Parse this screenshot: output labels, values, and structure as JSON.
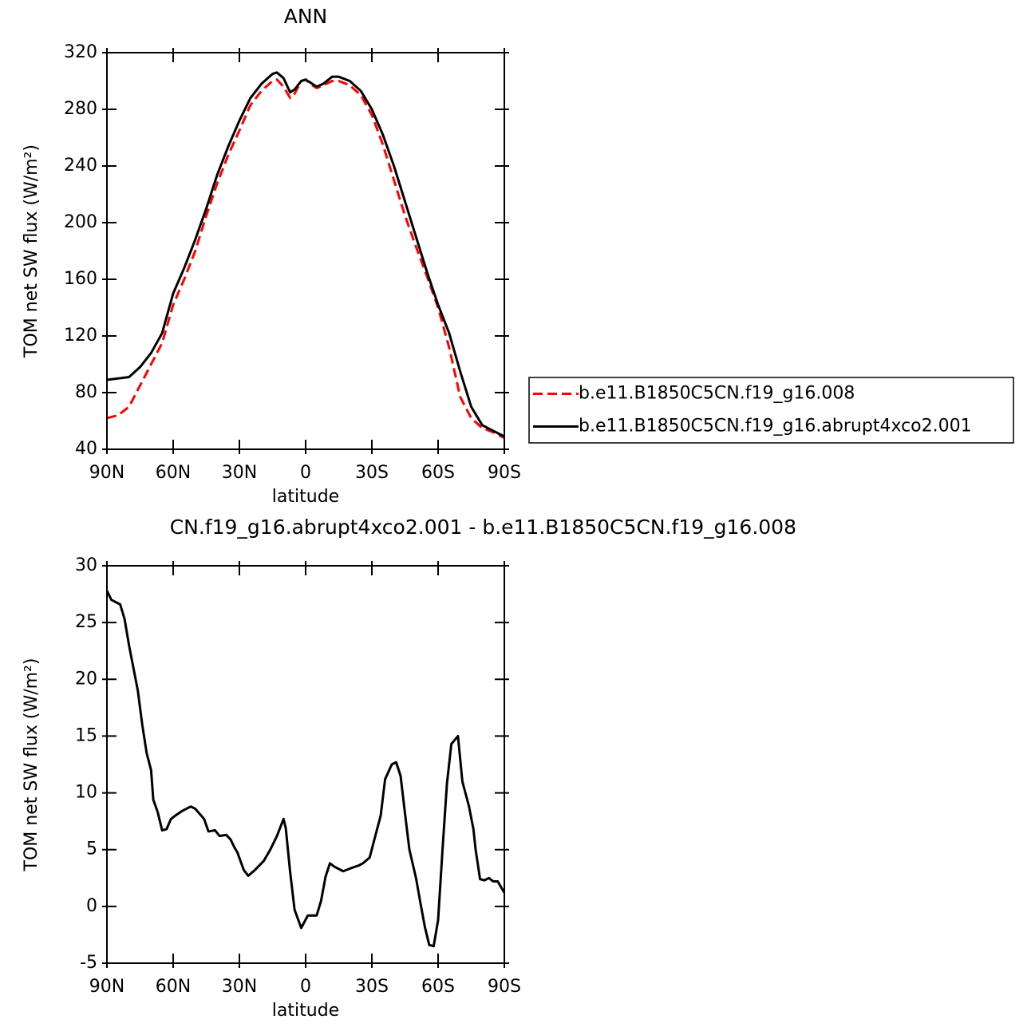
{
  "chart_data": [
    {
      "type": "line",
      "title": "ANN",
      "xlabel": "latitude",
      "ylabel": "TOM net SW flux (W/m²)",
      "x": [
        90,
        85,
        80,
        75,
        70,
        65,
        60,
        55,
        50,
        45,
        40,
        35,
        30,
        25,
        20,
        15,
        13,
        10,
        7,
        5,
        2,
        0,
        -3,
        -5,
        -8,
        -12,
        -15,
        -20,
        -25,
        -30,
        -35,
        -40,
        -45,
        -50,
        -55,
        -60,
        -65,
        -70,
        -75,
        -80,
        -85,
        -90
      ],
      "series": [
        {
          "name": "b.e11.B1850C5CN.f19_g16.008",
          "color": "#ff0000",
          "dash": true,
          "values": [
            62,
            64,
            70,
            85,
            100,
            115,
            142,
            160,
            180,
            205,
            228,
            248,
            265,
            283,
            293,
            300,
            301,
            296,
            288,
            291,
            300,
            301,
            297,
            295,
            297,
            300,
            300,
            297,
            290,
            276,
            255,
            230,
            205,
            183,
            162,
            140,
            112,
            77,
            62,
            55,
            52,
            48
          ]
        },
        {
          "name": "b.e11.B1850C5CN.f19_g16.abrupt4xco2.001",
          "color": "#000000",
          "dash": false,
          "values": [
            89,
            90,
            91,
            98,
            108,
            122,
            150,
            168,
            188,
            210,
            234,
            254,
            272,
            288,
            298,
            305,
            306,
            302,
            292,
            294,
            300,
            301,
            298,
            296,
            298,
            303,
            303,
            300,
            293,
            280,
            262,
            240,
            215,
            190,
            165,
            142,
            122,
            95,
            70,
            57,
            53,
            49
          ]
        }
      ],
      "xlim": [
        90,
        -90
      ],
      "xticks": [
        {
          "value": 90,
          "label": "90N"
        },
        {
          "value": 60,
          "label": "60N"
        },
        {
          "value": 30,
          "label": "30N"
        },
        0,
        {
          "value": -30,
          "label": "30S"
        },
        {
          "value": -60,
          "label": "60S"
        },
        {
          "value": -90,
          "label": "90S"
        }
      ],
      "ylim": [
        40,
        320
      ],
      "yticks": [
        40,
        80,
        120,
        160,
        200,
        240,
        280,
        320
      ],
      "legend": "right"
    },
    {
      "type": "line",
      "title": "CN.f19_g16.abrupt4xco2.001 - b.e11.B1850C5CN.f19_g16.008",
      "xlabel": "latitude",
      "ylabel": "TOM net SW flux (W/m²)",
      "x": [
        90,
        88,
        84,
        82,
        80,
        78,
        76,
        74,
        72,
        70,
        69,
        67,
        65,
        63,
        61,
        59,
        56,
        52,
        50,
        46,
        44,
        41,
        39,
        36,
        34,
        32,
        31,
        28,
        26,
        23,
        19,
        16,
        13,
        10,
        9,
        7,
        5,
        2,
        -1,
        -5,
        -7,
        -9,
        -11,
        -13,
        -17,
        -21,
        -24,
        -26,
        -29,
        -31,
        -34,
        -36,
        -39,
        -41,
        -43,
        -45,
        -47,
        -50,
        -52,
        -54,
        -56,
        -58,
        -60,
        -62,
        -64,
        -66,
        -69,
        -71,
        -74,
        -76,
        -77,
        -79,
        -81,
        -83,
        -85,
        -87,
        -90
      ],
      "series": [
        {
          "color": "#000000",
          "dash": false,
          "values": [
            27.8,
            27,
            26.6,
            25.3,
            23,
            21,
            19,
            16,
            13.5,
            12,
            9.4,
            8.3,
            6.7,
            6.8,
            7.7,
            8,
            8.4,
            8.8,
            8.6,
            7.7,
            6.6,
            6.7,
            6.2,
            6.3,
            5.9,
            5.1,
            4.8,
            3.2,
            2.7,
            3.2,
            4,
            5,
            6.2,
            7.7,
            6.9,
            3,
            -0.3,
            -1.9,
            -0.8,
            -0.8,
            0.5,
            2.6,
            3.8,
            3.5,
            3.1,
            3.4,
            3.6,
            3.8,
            4.3,
            5.8,
            8,
            11.2,
            12.5,
            12.7,
            11.5,
            8.2,
            5,
            2.5,
            0.3,
            -1.8,
            -3.4,
            -3.5,
            -1.2,
            5,
            10.8,
            14.3,
            15,
            11,
            8.8,
            6.8,
            5,
            2.4,
            2.3,
            2.5,
            2.2,
            2.2,
            1.2
          ]
        }
      ],
      "xlim": [
        90,
        -90
      ],
      "xticks": [
        {
          "value": 90,
          "label": "90N"
        },
        {
          "value": 60,
          "label": "60N"
        },
        {
          "value": 30,
          "label": "30N"
        },
        0,
        {
          "value": -30,
          "label": "30S"
        },
        {
          "value": -60,
          "label": "60S"
        },
        {
          "value": -90,
          "label": "90S"
        }
      ],
      "ylim": [
        -5,
        30
      ],
      "yticks": [
        -5,
        0,
        5,
        10,
        15,
        20,
        25,
        30
      ]
    }
  ]
}
